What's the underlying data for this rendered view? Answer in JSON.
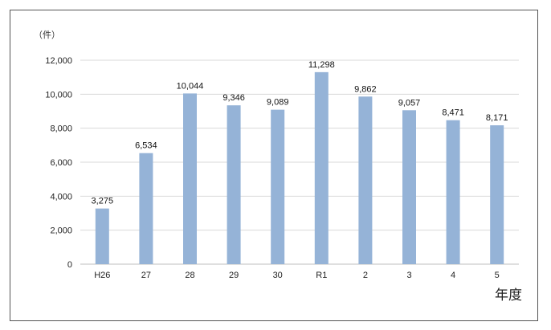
{
  "chart_data": {
    "type": "bar",
    "title": "",
    "ylabel": "（件）",
    "xlabel": "年度",
    "categories": [
      "H26",
      "27",
      "28",
      "29",
      "30",
      "R1",
      "2",
      "3",
      "4",
      "5"
    ],
    "values": [
      3275,
      6534,
      10044,
      9346,
      9089,
      11298,
      9862,
      9057,
      8471,
      8171
    ],
    "value_labels": [
      "3,275",
      "6,534",
      "10,044",
      "9,346",
      "9,089",
      "11,298",
      "9,862",
      "9,057",
      "8,471",
      "8,171"
    ],
    "ylim": [
      0,
      12000
    ],
    "yticks": [
      0,
      2000,
      4000,
      6000,
      8000,
      10000,
      12000
    ],
    "ytick_labels": [
      "0",
      "2,000",
      "4,000",
      "6,000",
      "8,000",
      "10,000",
      "12,000"
    ],
    "grid": true,
    "bar_color": "#95b3d7",
    "grid_color": "#d9d9d9"
  }
}
